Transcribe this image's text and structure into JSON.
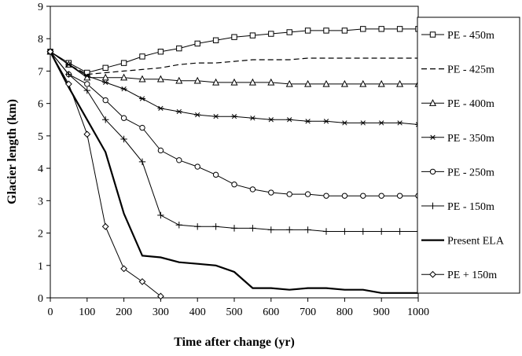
{
  "chart_data": {
    "type": "line",
    "xlabel": "Time after change (yr)",
    "ylabel": "Glacier length (km)",
    "xlim": [
      0,
      1000
    ],
    "ylim": [
      0,
      9
    ],
    "xticks": [
      0,
      100,
      200,
      300,
      400,
      500,
      600,
      700,
      800,
      900,
      1000
    ],
    "yticks": [
      0,
      1,
      2,
      3,
      4,
      5,
      6,
      7,
      8,
      9
    ],
    "grid": false,
    "legend_position": "right",
    "x": [
      0,
      50,
      100,
      150,
      200,
      250,
      300,
      350,
      400,
      450,
      500,
      550,
      600,
      650,
      700,
      750,
      800,
      850,
      900,
      950,
      1000
    ],
    "series": [
      {
        "name": "PE - 450m",
        "marker": "square",
        "line": "solid",
        "values": [
          7.6,
          7.25,
          6.95,
          7.1,
          7.25,
          7.45,
          7.6,
          7.7,
          7.85,
          7.95,
          8.05,
          8.1,
          8.15,
          8.2,
          8.25,
          8.25,
          8.25,
          8.3,
          8.3,
          8.3,
          8.3
        ]
      },
      {
        "name": "PE - 425m",
        "marker": "none",
        "line": "dashed",
        "values": [
          7.6,
          7.2,
          6.9,
          6.95,
          7.0,
          7.05,
          7.1,
          7.2,
          7.25,
          7.25,
          7.3,
          7.35,
          7.35,
          7.35,
          7.4,
          7.4,
          7.4,
          7.4,
          7.4,
          7.4,
          7.4
        ]
      },
      {
        "name": "PE - 400m",
        "marker": "triangle",
        "line": "solid",
        "values": [
          7.6,
          7.2,
          6.8,
          6.8,
          6.8,
          6.75,
          6.75,
          6.7,
          6.7,
          6.65,
          6.65,
          6.65,
          6.65,
          6.6,
          6.6,
          6.6,
          6.6,
          6.6,
          6.6,
          6.6,
          6.6
        ]
      },
      {
        "name": "PE - 350m",
        "marker": "star",
        "line": "solid",
        "values": [
          7.6,
          7.2,
          6.85,
          6.65,
          6.45,
          6.15,
          5.85,
          5.75,
          5.65,
          5.6,
          5.6,
          5.55,
          5.5,
          5.5,
          5.45,
          5.45,
          5.4,
          5.4,
          5.4,
          5.4,
          5.35
        ]
      },
      {
        "name": "PE - 250m",
        "marker": "circle",
        "line": "solid",
        "values": [
          7.6,
          6.9,
          6.6,
          6.1,
          5.55,
          5.25,
          4.55,
          4.25,
          4.05,
          3.8,
          3.5,
          3.35,
          3.25,
          3.2,
          3.2,
          3.15,
          3.15,
          3.15,
          3.15,
          3.15,
          3.15
        ]
      },
      {
        "name": "PE - 150m",
        "marker": "plus",
        "line": "solid",
        "values": [
          7.6,
          6.9,
          6.4,
          5.5,
          4.9,
          4.2,
          2.55,
          2.25,
          2.2,
          2.2,
          2.15,
          2.15,
          2.1,
          2.1,
          2.1,
          2.05,
          2.05,
          2.05,
          2.05,
          2.05,
          2.05
        ]
      },
      {
        "name": "Present ELA",
        "marker": "none",
        "line": "bold",
        "values": [
          7.6,
          6.5,
          5.5,
          4.5,
          2.6,
          1.3,
          1.25,
          1.1,
          1.05,
          1.0,
          0.8,
          0.3,
          0.3,
          0.25,
          0.3,
          0.3,
          0.25,
          0.25,
          0.15,
          0.15,
          0.15
        ]
      },
      {
        "name": "PE + 150m",
        "marker": "diamond",
        "line": "solid",
        "values": [
          7.6,
          6.6,
          5.05,
          2.2,
          0.9,
          0.5,
          0.05,
          null,
          null,
          null,
          null,
          null,
          null,
          null,
          null,
          null,
          null,
          null,
          null,
          null,
          null
        ]
      }
    ]
  }
}
